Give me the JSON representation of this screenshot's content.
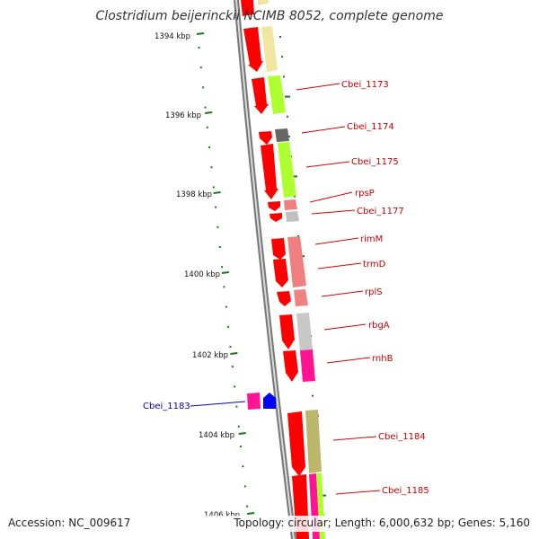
{
  "title": "Clostridium beijerinckii NCIMB 8052, complete genome",
  "footer": {
    "accession": "Accession: NC_009617",
    "summary": "Topology: circular; Length: 6,000,632 bp; Genes: 5,160"
  },
  "colors": {
    "backbone": "#808080",
    "tick": "#1a7a1a",
    "forward_strand": "#ff0000",
    "reverse_label": "#cc0000",
    "forward_label": "#0000cc",
    "label_line_red": "#dd0000",
    "label_line_blue": "#0000cc"
  },
  "scale_labels": [
    "1394 kbp",
    "1396 kbp",
    "1398 kbp",
    "1400 kbp",
    "1402 kbp",
    "1404 kbp",
    "1406 kbp"
  ],
  "gene_labels": [
    {
      "text": "Cbei_1173",
      "color": "#cc0000"
    },
    {
      "text": "Cbei_1174",
      "color": "#cc0000"
    },
    {
      "text": "Cbei_1175",
      "color": "#cc0000"
    },
    {
      "text": "rpsP",
      "color": "#cc0000"
    },
    {
      "text": "Cbei_1177",
      "color": "#cc0000"
    },
    {
      "text": "rimM",
      "color": "#cc0000"
    },
    {
      "text": "trmD",
      "color": "#cc0000"
    },
    {
      "text": "rplS",
      "color": "#cc0000"
    },
    {
      "text": "rbgA",
      "color": "#cc0000"
    },
    {
      "text": "rnhB",
      "color": "#cc0000"
    },
    {
      "text": "Cbei_1183",
      "color": "#0000cc"
    },
    {
      "text": "Cbei_1184",
      "color": "#cc0000"
    },
    {
      "text": "Cbei_1185",
      "color": "#cc0000"
    }
  ]
}
